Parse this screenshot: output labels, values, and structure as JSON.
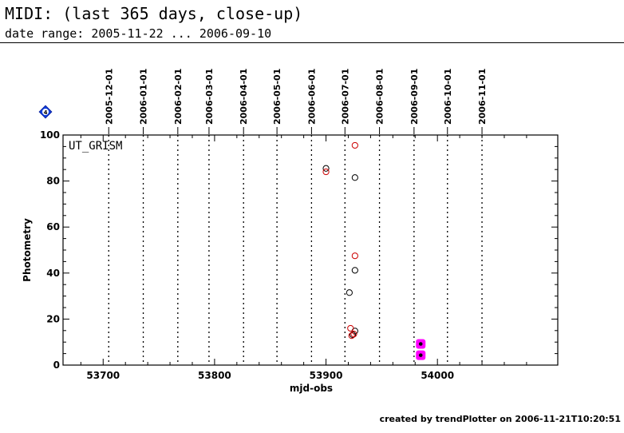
{
  "page": {
    "title": "MIDI: (last 365 days, close-up)",
    "subtitle": "date range: 2005-11-22 ... 2006-09-10",
    "footer": "created by trendPlotter on 2006-11-21T10:20:51",
    "badge_text": "4"
  },
  "chart_data": {
    "type": "scatter",
    "xlabel": "mjd-obs",
    "ylabel": "Photometry",
    "panel_label": "UT_GRISM",
    "xlim": [
      53664,
      54108
    ],
    "ylim": [
      0,
      100
    ],
    "xticks": [
      53700,
      53800,
      53900,
      54000
    ],
    "yticks": [
      0,
      20,
      40,
      60,
      80,
      100
    ],
    "date_markers": [
      {
        "label": "2005-12-01",
        "mjd": 53705
      },
      {
        "label": "2006-01-01",
        "mjd": 53736
      },
      {
        "label": "2006-02-01",
        "mjd": 53767
      },
      {
        "label": "2006-03-01",
        "mjd": 53795
      },
      {
        "label": "2006-04-01",
        "mjd": 53826
      },
      {
        "label": "2006-05-01",
        "mjd": 53856
      },
      {
        "label": "2006-06-01",
        "mjd": 53887
      },
      {
        "label": "2006-07-01",
        "mjd": 53917
      },
      {
        "label": "2006-08-01",
        "mjd": 53948
      },
      {
        "label": "2006-09-01",
        "mjd": 53979
      },
      {
        "label": "2006-10-01",
        "mjd": 54009
      },
      {
        "label": "2006-11-01",
        "mjd": 54040
      }
    ],
    "series": [
      {
        "color": "#000000",
        "marker": "open-circle",
        "points": [
          [
            53900,
            85.5
          ],
          [
            53926,
            81.5
          ],
          [
            53926,
            41.2
          ],
          [
            53921,
            31.5
          ],
          [
            53926,
            14.8
          ],
          [
            53924,
            13.2
          ]
        ]
      },
      {
        "color": "#cc0000",
        "marker": "open-circle",
        "points": [
          [
            53900,
            84.0
          ],
          [
            53926,
            95.5
          ],
          [
            53926,
            47.5
          ],
          [
            53922,
            16.0
          ],
          [
            53925,
            13.5
          ],
          [
            53923,
            12.8
          ]
        ]
      },
      {
        "color": "#ff00ff",
        "marker": "highlighted-dot",
        "points": [
          [
            53985,
            9.2
          ],
          [
            53985,
            4.3
          ]
        ]
      }
    ]
  }
}
